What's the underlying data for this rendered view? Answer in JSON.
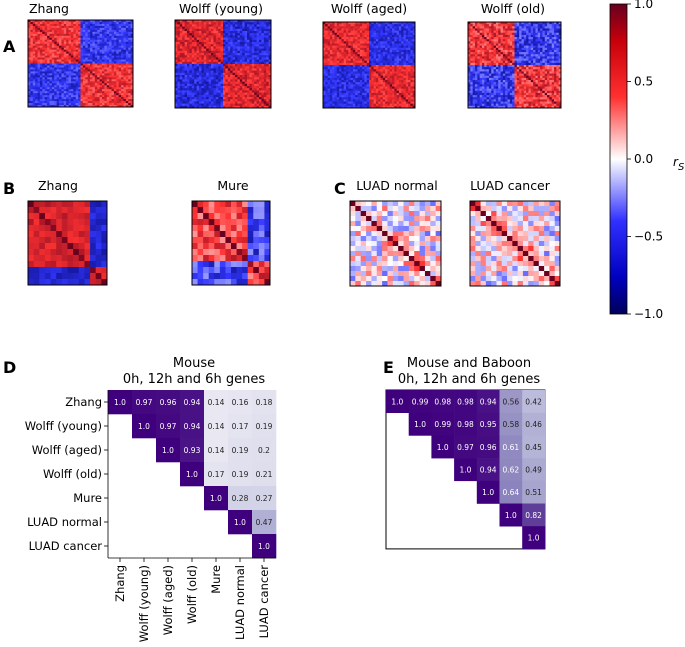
{
  "chart_data": [
    {
      "type": "heatmap",
      "panel": "A",
      "description": "Spearman correlation clustermaps",
      "titles": [
        "Zhang",
        "Wolff (young)",
        "Wolff (aged)",
        "Wolff (old)"
      ]
    },
    {
      "type": "heatmap",
      "panel": "B",
      "titles": [
        "Zhang",
        "Mure"
      ]
    },
    {
      "type": "heatmap",
      "panel": "C",
      "titles": [
        "LUAD normal",
        "LUAD cancer"
      ]
    },
    {
      "type": "colorbar",
      "label": "r",
      "label_sub": "S",
      "range": [
        -1.0,
        1.0
      ],
      "ticks": [
        "1.0",
        "0.5",
        "0.0",
        "−0.5",
        "−1.0"
      ],
      "tick_values": [
        1.0,
        0.5,
        0.0,
        -0.5,
        -1.0
      ]
    },
    {
      "type": "table",
      "panel": "D",
      "title_line1": "Mouse",
      "title_line2": "0h, 12h and 6h genes",
      "rows": [
        "Zhang",
        "Wolff (young)",
        "Wolff (aged)",
        "Wolff (old)",
        "Mure",
        "LUAD normal",
        "LUAD cancer"
      ],
      "cols": [
        "Zhang",
        "Wolff (young)",
        "Wolff (aged)",
        "Wolff (old)",
        "Mure",
        "LUAD normal",
        "LUAD cancer"
      ],
      "values": [
        [
          "1.0",
          "0.97",
          "0.96",
          "0.94",
          "0.14",
          "0.16",
          "0.18"
        ],
        [
          null,
          "1.0",
          "0.97",
          "0.94",
          "0.14",
          "0.17",
          "0.19"
        ],
        [
          null,
          null,
          "1.0",
          "0.93",
          "0.14",
          "0.19",
          "0.2"
        ],
        [
          null,
          null,
          null,
          "1.0",
          "0.17",
          "0.19",
          "0.21"
        ],
        [
          null,
          null,
          null,
          null,
          "1.0",
          "0.28",
          "0.27"
        ],
        [
          null,
          null,
          null,
          null,
          null,
          "1.0",
          "0.47"
        ],
        [
          null,
          null,
          null,
          null,
          null,
          null,
          "1.0"
        ]
      ]
    },
    {
      "type": "table",
      "panel": "E",
      "title_line1": "Mouse and Baboon",
      "title_line2": "0h, 12h and 6h genes",
      "values": [
        [
          "1.0",
          "0.99",
          "0.98",
          "0.98",
          "0.94",
          "0.56",
          "0.42"
        ],
        [
          null,
          "1.0",
          "0.99",
          "0.98",
          "0.95",
          "0.58",
          "0.46"
        ],
        [
          null,
          null,
          "1.0",
          "0.97",
          "0.96",
          "0.61",
          "0.45"
        ],
        [
          null,
          null,
          null,
          "1.0",
          "0.94",
          "0.62",
          "0.49"
        ],
        [
          null,
          null,
          null,
          null,
          "1.0",
          "0.64",
          "0.51"
        ],
        [
          null,
          null,
          null,
          null,
          null,
          "1.0",
          "0.82"
        ],
        [
          null,
          null,
          null,
          null,
          null,
          null,
          "1.0"
        ]
      ]
    }
  ],
  "panel_letters": [
    "A",
    "B",
    "C",
    "D",
    "E"
  ],
  "colors": {
    "red": "#e8262a",
    "blue": "#2a3bd6",
    "purple_dark": "#3f007d",
    "purple_light": "#fcfbfd"
  }
}
